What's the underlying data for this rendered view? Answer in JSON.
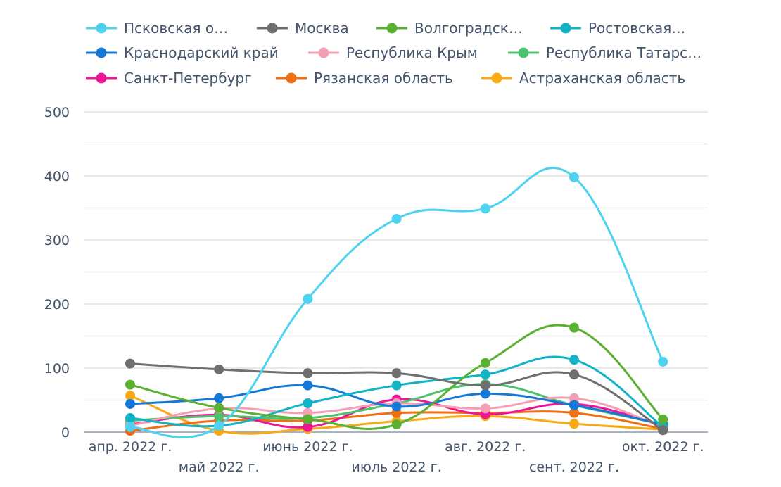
{
  "chart_data": {
    "type": "line",
    "categories": [
      "апр. 2022 г.",
      "май 2022 г.",
      "июнь 2022 г.",
      "июль 2022 г.",
      "авг. 2022 г.",
      "сент. 2022 г.",
      "окт. 2022 г."
    ],
    "ylim": [
      0,
      500
    ],
    "yticks": [
      "0",
      "100",
      "200",
      "300",
      "400",
      "500"
    ],
    "grid": true,
    "legend_position": "top",
    "series": [
      {
        "name": "Псковская о…",
        "color": "#4dd2f0",
        "values": [
          8,
          10,
          208,
          333,
          349,
          398,
          110
        ]
      },
      {
        "name": "Москва",
        "color": "#6f6f6f",
        "values": [
          107,
          98,
          92,
          92,
          73,
          90,
          3
        ]
      },
      {
        "name": "Волгоградск…",
        "color": "#5ab032",
        "values": [
          74,
          38,
          20,
          12,
          108,
          163,
          20
        ]
      },
      {
        "name": "Ростовская…",
        "color": "#12b3c7",
        "values": [
          22,
          10,
          45,
          73,
          90,
          113,
          8
        ]
      },
      {
        "name": "Краснодарский край",
        "color": "#1478d8",
        "values": [
          44,
          53,
          73,
          40,
          60,
          42,
          12
        ]
      },
      {
        "name": "Республика Крым",
        "color": "#f3a0b5",
        "values": [
          10,
          37,
          30,
          45,
          37,
          53,
          8
        ]
      },
      {
        "name": "Республика Татарс…",
        "color": "#4cc46e",
        "values": [
          18,
          25,
          22,
          45,
          75,
          42,
          12
        ]
      },
      {
        "name": "Санкт-Петербург",
        "color": "#ee1695",
        "values": [
          12,
          27,
          8,
          51,
          28,
          44,
          10
        ]
      },
      {
        "name": "Рязанская область",
        "color": "#f06e14",
        "values": [
          2,
          18,
          18,
          30,
          30,
          30,
          5
        ]
      },
      {
        "name": "Астраханская область",
        "color": "#f8a914",
        "values": [
          57,
          2,
          5,
          17,
          25,
          13,
          4
        ]
      }
    ]
  }
}
